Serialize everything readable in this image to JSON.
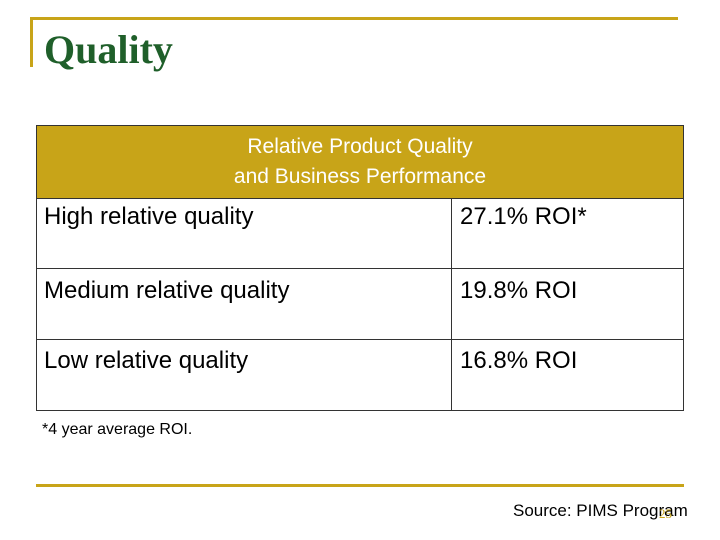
{
  "slide": {
    "title": "Quality",
    "footnote": "*4 year average ROI.",
    "source": "Source: PIMS Program",
    "page_number": "25"
  },
  "table": {
    "header_line1": "Relative Product Quality",
    "header_line2": "and Business Performance",
    "rows": [
      {
        "label": "High relative quality",
        "value": "27.1% ROI*"
      },
      {
        "label": "Medium relative quality",
        "value": "19.8% ROI"
      },
      {
        "label": "Low relative quality",
        "value": "16.8% ROI"
      }
    ]
  },
  "colors": {
    "accent": "#c8a418",
    "title": "#1f5f2a",
    "header_text": "#ffffff"
  }
}
